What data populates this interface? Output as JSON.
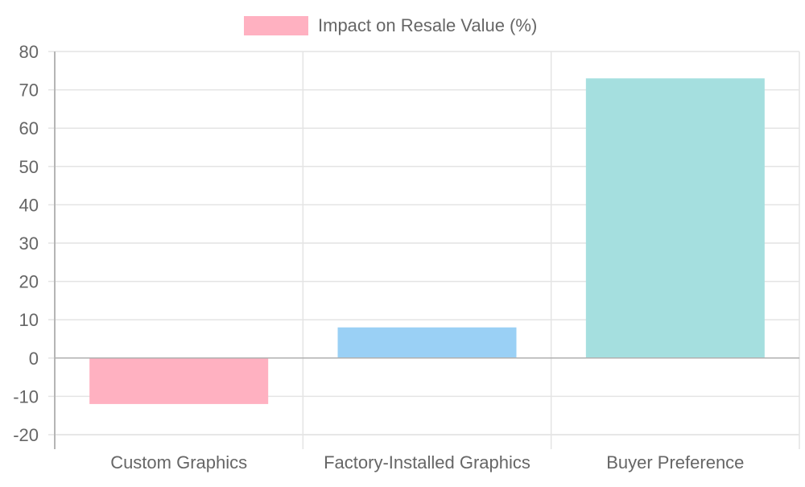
{
  "chart_data": {
    "type": "bar",
    "categories": [
      "Custom Graphics",
      "Factory-Installed Graphics",
      "Buyer Preference"
    ],
    "series": [
      {
        "name": "Impact on Resale Value (%)",
        "values": [
          -12,
          8,
          73
        ]
      }
    ],
    "bar_colors": [
      "#ffb1c1",
      "#9ad0f5",
      "#a5dfdf"
    ],
    "ylim": [
      -20,
      80
    ],
    "yticks": [
      80,
      70,
      60,
      50,
      40,
      30,
      20,
      10,
      0,
      -10,
      -20
    ],
    "legend_position": "top",
    "grid": true
  },
  "colors": {
    "grid": "#e4e4e4",
    "axis": "#b5b5b5",
    "zero_line": "#b0b0b0",
    "text": "#666666"
  }
}
